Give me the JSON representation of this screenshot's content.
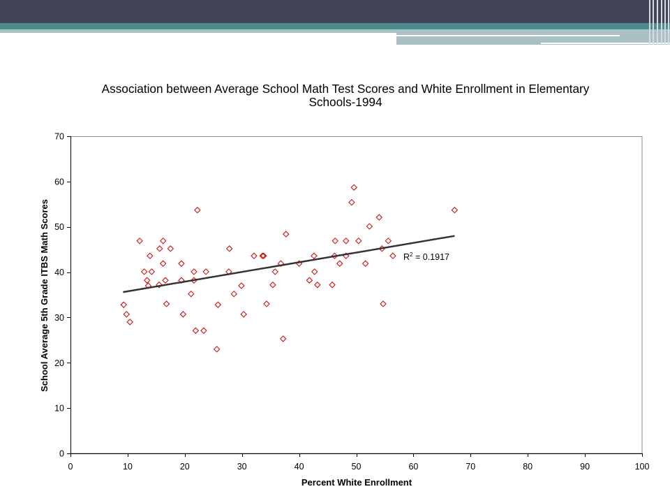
{
  "theme": {
    "header_dark": "#424456",
    "header_teal": "#4e8b8d",
    "header_light": "#a9c1c5",
    "header_rule": "#ffffff",
    "header_vertical_rule": "#d3dcde",
    "marker_color": "#cc0000",
    "trendline_color": "#333333",
    "axis_color": "#000000",
    "plot_border_color": "#8c8c8c"
  },
  "chart_data": {
    "type": "scatter",
    "title": "Association between Average School Math Test Scores and White Enrollment in Elementary Schools-1994",
    "xlabel": "Percent White Enrollment",
    "ylabel": "School Average 5th Grade ITBS Math Scores",
    "xlim": [
      0,
      100
    ],
    "ylim": [
      0,
      70
    ],
    "xticks": [
      0,
      10,
      20,
      30,
      40,
      50,
      60,
      70,
      80,
      90,
      100
    ],
    "yticks": [
      0,
      10,
      20,
      30,
      40,
      50,
      60,
      70
    ],
    "grid": false,
    "legend": "none",
    "marker": "diamond",
    "x": [
      9.3,
      9.8,
      10.4,
      12.1,
      12.9,
      13.4,
      13.6,
      13.9,
      14.2,
      15.5,
      15.6,
      16.2,
      16.2,
      16.6,
      16.8,
      17.5,
      19.4,
      19.4,
      19.7,
      21.1,
      21.6,
      21.6,
      21.9,
      22.2,
      23.3,
      23.7,
      25.6,
      25.8,
      27.7,
      27.8,
      28.6,
      29.9,
      30.3,
      32.1,
      33.6,
      33.8,
      34.3,
      35.4,
      35.8,
      36.8,
      37.2,
      37.7,
      40.0,
      41.8,
      42.6,
      42.7,
      43.2,
      45.8,
      46.2,
      46.3,
      47.1,
      48.2,
      48.2,
      49.2,
      49.6,
      50.4,
      51.6,
      52.3,
      54.0,
      54.5,
      54.7,
      55.6,
      56.4,
      67.2
    ],
    "y": [
      32.8,
      30.7,
      29.0,
      46.9,
      40.1,
      38.2,
      37.0,
      43.6,
      40.1,
      37.2,
      45.2,
      46.9,
      41.9,
      38.2,
      33.0,
      45.2,
      41.9,
      38.2,
      30.7,
      35.2,
      40.1,
      38.2,
      27.1,
      53.7,
      27.1,
      40.1,
      23.0,
      32.8,
      40.1,
      45.2,
      35.2,
      37.0,
      30.7,
      43.6,
      43.6,
      43.6,
      33.0,
      37.2,
      40.1,
      41.9,
      25.3,
      48.4,
      41.9,
      38.2,
      43.6,
      40.1,
      37.2,
      37.2,
      43.6,
      46.9,
      41.9,
      43.6,
      46.9,
      55.4,
      58.7,
      46.9,
      41.9,
      50.1,
      52.1,
      45.2,
      33.0,
      46.9,
      43.6,
      53.7
    ],
    "trendline": {
      "type": "linear",
      "start": [
        9.2,
        35.6
      ],
      "end": [
        67.2,
        48.0
      ],
      "label": {
        "base": "R",
        "superscript": "2",
        "text": "= 0.1917"
      }
    }
  }
}
